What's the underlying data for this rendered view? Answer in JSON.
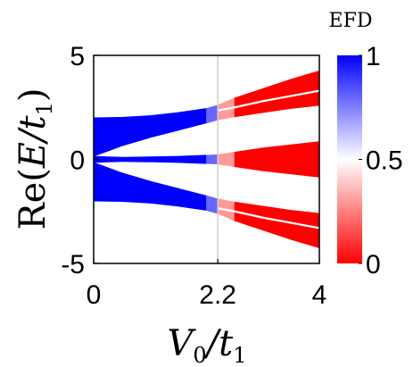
{
  "chart_data": {
    "type": "area",
    "title": "",
    "xlabel": {
      "text": "V",
      "sub": "0",
      "sep": "/t",
      "sub2": "1"
    },
    "ylabel": {
      "prefix": "Re(",
      "var": "E",
      "sep": "/t",
      "sub": "1",
      "suffix": ")"
    },
    "xlim": [
      0,
      4
    ],
    "ylim": [
      -5,
      5
    ],
    "xticks": [
      {
        "value": 0,
        "label": "0"
      },
      {
        "value": 2.2,
        "label": "2.2"
      },
      {
        "value": 4,
        "label": "4"
      }
    ],
    "yticks": [
      {
        "value": 5,
        "label": "5"
      },
      {
        "value": 0,
        "label": "0"
      },
      {
        "value": -5,
        "label": "-5"
      }
    ],
    "transition_line_x": 2.2,
    "grid": false,
    "colorbar": {
      "title": "EFD",
      "range": [
        0,
        1
      ],
      "ticks": [
        {
          "value": 1,
          "label": "1"
        },
        {
          "value": 0.5,
          "label": "0.5"
        },
        {
          "value": 0,
          "label": "0"
        }
      ],
      "colors": {
        "low": "#ff0000",
        "mid": "#ffffff",
        "high": "#0000ff"
      }
    },
    "bands": [
      {
        "id": "upper-band",
        "x": [
          0,
          0.5,
          1.0,
          1.5,
          2.0,
          2.2,
          2.5,
          3.0,
          3.5,
          4.0
        ],
        "upper": [
          2.0,
          2.02,
          2.1,
          2.25,
          2.45,
          2.6,
          2.95,
          3.4,
          3.85,
          4.25
        ],
        "lower": [
          0.15,
          0.65,
          1.05,
          1.4,
          1.75,
          1.9,
          2.05,
          2.25,
          2.45,
          2.6
        ],
        "efd": [
          1,
          1,
          1,
          1,
          1,
          0.6,
          0,
          0,
          0,
          0
        ]
      },
      {
        "id": "middle-band",
        "x": [
          0,
          0.5,
          1.0,
          1.5,
          2.0,
          2.2,
          2.5,
          3.0,
          3.5,
          4.0
        ],
        "upper": [
          0.15,
          0.1,
          0.12,
          0.15,
          0.2,
          0.22,
          0.35,
          0.55,
          0.7,
          0.85
        ],
        "lower": [
          -0.15,
          -0.1,
          -0.12,
          -0.15,
          -0.2,
          -0.22,
          -0.35,
          -0.55,
          -0.7,
          -0.85
        ],
        "efd": [
          1,
          1,
          1,
          1,
          1,
          0.6,
          0,
          0,
          0,
          0
        ]
      },
      {
        "id": "lower-band",
        "x": [
          0,
          0.5,
          1.0,
          1.5,
          2.0,
          2.2,
          2.5,
          3.0,
          3.5,
          4.0
        ],
        "upper": [
          -0.15,
          -0.65,
          -1.05,
          -1.4,
          -1.75,
          -1.9,
          -2.05,
          -2.25,
          -2.45,
          -2.6
        ],
        "lower": [
          -2.0,
          -2.02,
          -2.1,
          -2.25,
          -2.45,
          -2.6,
          -2.95,
          -3.4,
          -3.85,
          -4.25
        ],
        "efd": [
          1,
          1,
          1,
          1,
          1,
          0.6,
          0,
          0,
          0,
          0
        ]
      }
    ],
    "gaps": [
      {
        "id": "upper-gap",
        "x": [
          2.2,
          2.5,
          3.0,
          3.5,
          4.0
        ],
        "y": [
          2.35,
          2.5,
          2.8,
          3.05,
          3.3
        ]
      },
      {
        "id": "lower-gap",
        "x": [
          2.2,
          2.5,
          3.0,
          3.5,
          4.0
        ],
        "y": [
          -2.35,
          -2.5,
          -2.8,
          -3.05,
          -3.3
        ]
      }
    ]
  }
}
